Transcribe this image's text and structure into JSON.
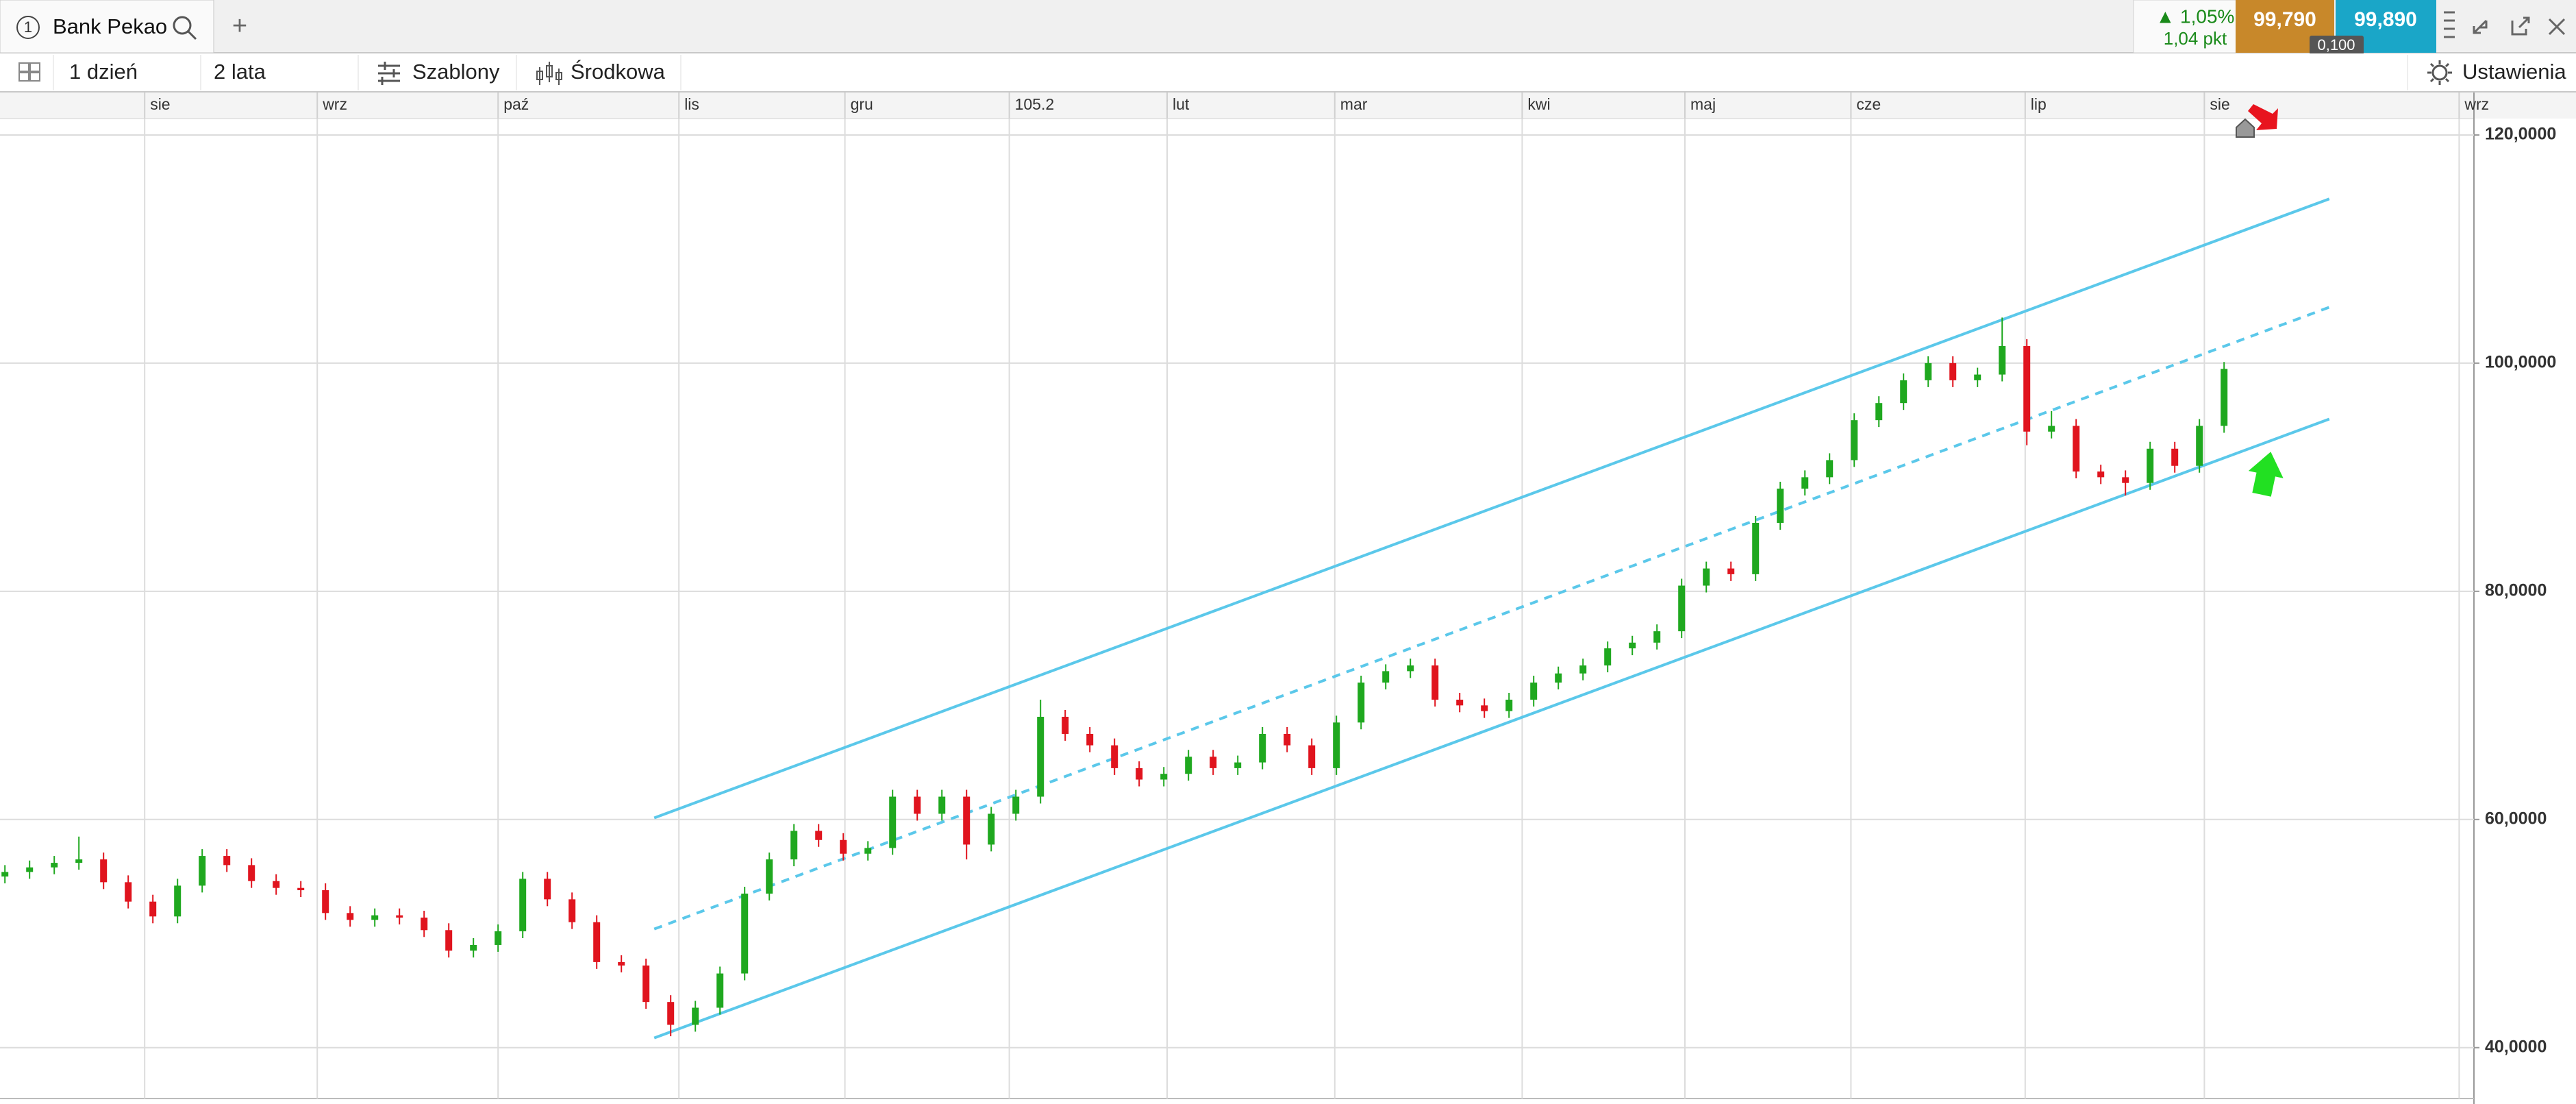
{
  "header": {
    "tab_number": "1",
    "tab_title": "Bank Pekao",
    "add_tab": "+",
    "change_pct": "▲ 1,05%",
    "change_pts": "1,04 pkt",
    "sell": "99,790",
    "buy": "99,890",
    "spread": "0,100"
  },
  "toolbar": {
    "interval": "1 dzień",
    "range": "2 lata",
    "templates": "Szablony",
    "chart_style": "Środkowa",
    "settings": "Ustawienia"
  },
  "chart_data": {
    "type": "candlestick",
    "x": [
      -17,
      -14,
      -11,
      -8,
      -5,
      -2,
      1,
      4,
      7,
      10,
      13,
      16,
      19,
      22,
      25,
      28,
      31,
      34,
      37,
      40,
      43,
      46,
      49,
      52,
      55,
      58,
      61,
      64,
      67,
      70,
      73,
      76,
      79,
      82,
      85,
      88,
      91,
      94,
      97,
      100,
      103,
      106,
      109,
      112,
      115,
      118,
      121,
      124,
      127,
      130,
      133,
      136,
      139,
      142,
      145,
      148,
      151,
      154,
      157,
      160,
      163,
      166,
      169,
      172,
      175,
      178,
      181,
      184,
      187,
      190,
      193,
      196,
      199,
      202,
      205,
      208,
      211,
      214,
      217,
      220,
      223,
      226,
      229,
      232,
      235,
      238,
      241,
      244,
      247,
      250,
      253
    ],
    "open": [
      55.0,
      55.4,
      55.8,
      56.2,
      56.5,
      54.5,
      52.8,
      51.5,
      54.2,
      56.8,
      56.0,
      54.6,
      54.0,
      53.8,
      51.8,
      51.2,
      51.6,
      51.4,
      50.3,
      48.5,
      49.0,
      50.2,
      54.8,
      53.0,
      51.0,
      47.5,
      47.2,
      44.0,
      42.0,
      43.5,
      46.5,
      53.5,
      56.5,
      59.0,
      58.2,
      57.0,
      57.5,
      62.0,
      60.5,
      62.0,
      57.8,
      60.5,
      62.0,
      69.0,
      67.5,
      66.5,
      64.5,
      63.5,
      64.0,
      65.5,
      64.5,
      65.0,
      67.5,
      66.5,
      64.5,
      68.5,
      72.0,
      73.0,
      73.5,
      70.5,
      70.0,
      69.5,
      70.5,
      72.0,
      72.8,
      73.5,
      75.0,
      75.5,
      76.5,
      80.5,
      82.0,
      81.5,
      86.0,
      89.0,
      90.0,
      91.5,
      95.0,
      96.5,
      98.5,
      100.0,
      98.5,
      99.0,
      101.5,
      94.0,
      94.5,
      90.5,
      90.0,
      89.5,
      92.5,
      91.0,
      94.5
    ],
    "high": [
      56.0,
      56.4,
      56.8,
      58.5,
      57.1,
      55.1,
      53.4,
      54.8,
      57.4,
      57.4,
      56.6,
      55.2,
      54.6,
      54.4,
      52.4,
      52.2,
      52.2,
      52.0,
      50.9,
      49.6,
      50.8,
      55.4,
      55.4,
      53.6,
      51.6,
      48.1,
      47.8,
      44.6,
      44.1,
      47.1,
      54.1,
      57.1,
      59.6,
      59.6,
      58.8,
      58.1,
      62.6,
      62.6,
      62.6,
      62.6,
      61.1,
      62.6,
      70.5,
      69.6,
      68.1,
      67.1,
      65.1,
      64.6,
      66.1,
      66.1,
      65.6,
      68.1,
      68.1,
      67.1,
      69.1,
      72.6,
      73.6,
      74.1,
      74.1,
      71.1,
      70.6,
      71.1,
      72.6,
      73.4,
      74.1,
      75.6,
      76.1,
      77.1,
      81.1,
      82.6,
      82.6,
      86.6,
      89.6,
      90.6,
      92.1,
      95.6,
      97.1,
      99.1,
      100.6,
      100.6,
      99.6,
      104.0,
      102.1,
      95.8,
      95.1,
      91.1,
      90.6,
      93.1,
      93.1,
      95.1,
      100.1
    ],
    "low": [
      54.4,
      54.8,
      55.2,
      55.6,
      53.9,
      52.2,
      50.9,
      50.9,
      53.6,
      55.4,
      54.0,
      53.4,
      53.2,
      51.2,
      50.6,
      50.6,
      50.8,
      49.7,
      47.9,
      47.9,
      48.4,
      49.6,
      52.4,
      50.4,
      46.9,
      46.6,
      43.4,
      41.0,
      41.4,
      42.9,
      45.9,
      52.9,
      55.9,
      57.6,
      56.4,
      56.4,
      56.9,
      59.9,
      59.9,
      56.5,
      57.2,
      59.9,
      61.4,
      66.9,
      65.9,
      63.9,
      62.9,
      62.9,
      63.4,
      63.9,
      63.9,
      64.4,
      65.9,
      63.9,
      63.9,
      67.9,
      71.4,
      72.4,
      69.9,
      69.4,
      68.9,
      68.9,
      69.9,
      71.4,
      72.2,
      72.9,
      74.4,
      74.9,
      75.9,
      79.9,
      80.9,
      80.9,
      85.4,
      88.4,
      89.4,
      90.9,
      94.4,
      95.9,
      97.9,
      97.9,
      97.9,
      98.4,
      92.8,
      93.4,
      89.9,
      89.4,
      88.4,
      88.9,
      90.4,
      90.4,
      93.9
    ],
    "close": [
      55.4,
      55.8,
      56.2,
      56.5,
      54.5,
      52.8,
      51.5,
      54.2,
      56.8,
      56.0,
      54.6,
      54.0,
      53.8,
      51.8,
      51.2,
      51.6,
      51.4,
      50.3,
      48.5,
      49.0,
      50.2,
      54.8,
      53.0,
      51.0,
      47.5,
      47.2,
      44.0,
      42.0,
      43.5,
      46.5,
      53.5,
      56.5,
      59.0,
      58.2,
      57.0,
      57.5,
      62.0,
      60.5,
      62.0,
      57.8,
      60.5,
      62.0,
      69.0,
      67.5,
      66.5,
      64.5,
      63.5,
      64.0,
      65.5,
      64.5,
      65.0,
      67.5,
      66.5,
      64.5,
      68.5,
      72.0,
      73.0,
      73.5,
      70.5,
      70.0,
      69.5,
      70.5,
      72.0,
      72.8,
      73.5,
      75.0,
      75.5,
      76.5,
      80.5,
      82.0,
      81.5,
      86.0,
      89.0,
      90.0,
      91.5,
      95.0,
      96.5,
      98.5,
      100.0,
      98.5,
      99.0,
      101.5,
      94.0,
      94.5,
      90.5,
      90.0,
      89.5,
      92.5,
      91.0,
      94.5,
      99.5
    ],
    "up_color": "#1fa81f",
    "down_color": "#e0141e",
    "xlim": [
      -17.6,
      283.4
    ],
    "xticks": [
      {
        "value": 0,
        "label": "sie"
      },
      {
        "value": 21,
        "label": "wrz"
      },
      {
        "value": 43,
        "label": "paź"
      },
      {
        "value": 65,
        "label": "lis"
      },
      {
        "value": 85.2,
        "label": "gru"
      },
      105.2,
      {
        "value": 124.4,
        "label": "lut"
      },
      {
        "value": 144.8,
        "label": "mar"
      },
      {
        "value": 167.6,
        "label": "kwi"
      },
      {
        "value": 187.4,
        "label": "maj"
      },
      {
        "value": 207.6,
        "label": "cze"
      },
      {
        "value": 228.8,
        "label": "lip"
      },
      {
        "value": 250.6,
        "label": "sie"
      },
      {
        "value": 281.6,
        "label": "wrz"
      }
    ],
    "ylim": [
      35.54,
      121.44
    ],
    "yticks": [
      {
        "value": 40,
        "label": "40,0000"
      },
      {
        "value": 60,
        "label": "60,0000"
      },
      {
        "value": 80,
        "label": "80,0000"
      },
      {
        "value": 100,
        "label": "100,0000"
      },
      {
        "value": 120,
        "label": "120,0000"
      }
    ],
    "grid": true,
    "trendlines": [
      {
        "x": [
          62,
          265.8
        ],
        "values": [
          60.14,
          114.4
        ],
        "dashed": false,
        "color": "#5bc8ea"
      },
      {
        "x": [
          62,
          265.8
        ],
        "values": [
          50.4,
          104.9
        ],
        "dashed": true,
        "color": "#5bc8ea"
      },
      {
        "x": [
          62,
          265.8
        ],
        "values": [
          40.85,
          95.1
        ],
        "dashed": false,
        "color": "#5bc8ea"
      }
    ]
  }
}
